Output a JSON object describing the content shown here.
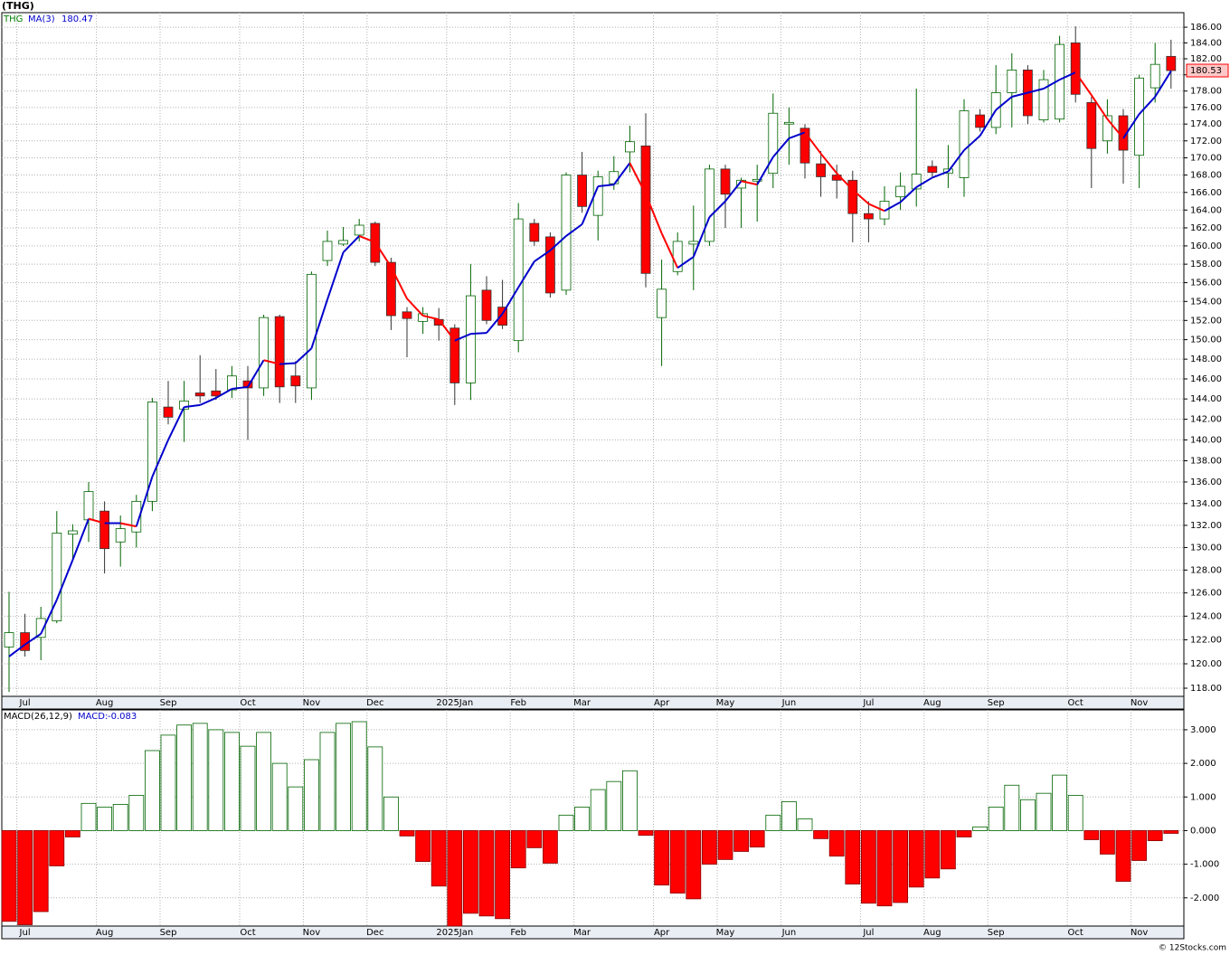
{
  "chart_data": [
    {
      "type": "candlestick",
      "title": "(THG)",
      "symbol": "THG",
      "symbol_color": "#008000",
      "categories": [
        null,
        "Jul",
        null,
        null,
        null,
        null,
        "Aug",
        null,
        null,
        null,
        "Sep",
        null,
        null,
        null,
        null,
        "Oct",
        null,
        null,
        null,
        "Nov",
        null,
        null,
        null,
        "Dec",
        null,
        null,
        null,
        null,
        "2025Jan",
        null,
        null,
        null,
        "Feb",
        null,
        null,
        null,
        "Mar",
        null,
        null,
        null,
        null,
        "Apr",
        null,
        null,
        null,
        "May",
        null,
        null,
        null,
        "Jun",
        null,
        null,
        null,
        null,
        "Jul",
        null,
        null,
        null,
        "Aug",
        null,
        null,
        null,
        "Sep",
        null,
        null,
        null,
        null,
        "Oct",
        null,
        null,
        null,
        "Nov",
        null,
        null
      ],
      "open": [
        121.4,
        122.6,
        122.2,
        123.6,
        131.2,
        132.5,
        133.3,
        130.5,
        131.4,
        134.2,
        143.2,
        143.0,
        144.6,
        144.8,
        144.9,
        145.8,
        145.1,
        152.4,
        146.3,
        145.1,
        158.4,
        160.2,
        161.2,
        162.5,
        158.2,
        152.9,
        151.9,
        152.1,
        151.2,
        145.6,
        155.2,
        153.4,
        149.9,
        162.5,
        161.0,
        155.2,
        168.0,
        163.4,
        167.0,
        170.7,
        171.4,
        152.3,
        157.2,
        160.2,
        160.5,
        168.7,
        166.5,
        167.3,
        168.2,
        174.0,
        173.5,
        169.3,
        168.0,
        167.4,
        163.6,
        163.0,
        165.5,
        166.4,
        169.0,
        168.2,
        167.7,
        175.1,
        173.6,
        177.8,
        180.6,
        174.5,
        174.6,
        184.0,
        176.6,
        172.0,
        175.0,
        170.3,
        178.4,
        182.3
      ],
      "high": [
        126.1,
        124.2,
        124.8,
        133.3,
        132.1,
        136.0,
        134.2,
        132.9,
        134.8,
        144.1,
        145.8,
        145.8,
        148.4,
        147.0,
        147.3,
        147.3,
        152.6,
        152.6,
        147.8,
        157.2,
        161.7,
        162.1,
        163.0,
        162.7,
        158.7,
        153.4,
        153.4,
        153.3,
        151.6,
        158.0,
        156.7,
        156.3,
        164.8,
        163.0,
        161.5,
        168.3,
        170.7,
        168.5,
        170.2,
        173.8,
        175.3,
        158.5,
        161.5,
        164.5,
        169.2,
        169.2,
        167.7,
        169.2,
        177.7,
        176.0,
        174.0,
        170.8,
        169.2,
        168.5,
        165.0,
        166.7,
        168.3,
        178.3,
        169.7,
        171.5,
        177.0,
        175.8,
        181.2,
        182.7,
        181.2,
        180.6,
        184.9,
        186.1,
        177.3,
        177.0,
        175.8,
        180.0,
        184.0,
        184.4
      ],
      "low": [
        117.7,
        120.6,
        120.3,
        123.4,
        128.9,
        130.5,
        127.7,
        128.3,
        130.0,
        133.3,
        141.5,
        139.8,
        143.6,
        143.9,
        144.1,
        140.0,
        144.3,
        143.6,
        143.6,
        143.9,
        157.8,
        160.0,
        160.5,
        157.8,
        151.0,
        148.2,
        150.6,
        149.9,
        143.4,
        143.9,
        151.6,
        151.1,
        148.7,
        160.0,
        154.4,
        154.7,
        163.7,
        160.6,
        166.3,
        168.3,
        155.5,
        147.3,
        156.8,
        155.2,
        160.0,
        162.0,
        162.0,
        162.7,
        166.5,
        169.2,
        167.6,
        165.5,
        165.3,
        160.4,
        160.4,
        162.3,
        164.0,
        164.4,
        167.8,
        166.5,
        165.5,
        173.1,
        172.8,
        173.6,
        174.0,
        174.2,
        174.2,
        176.6,
        166.5,
        170.5,
        167.0,
        166.5,
        176.6,
        178.3
      ],
      "close": [
        122.6,
        121.1,
        123.8,
        131.3,
        131.5,
        135.1,
        129.9,
        131.7,
        134.2,
        143.7,
        142.2,
        143.8,
        144.3,
        144.3,
        146.3,
        145.1,
        152.3,
        145.2,
        145.3,
        156.9,
        160.5,
        160.6,
        162.3,
        158.2,
        152.5,
        152.2,
        152.7,
        151.5,
        145.6,
        154.6,
        152.0,
        151.5,
        163.0,
        160.5,
        154.9,
        168.0,
        164.4,
        167.8,
        168.4,
        171.9,
        157.0,
        155.3,
        160.5,
        160.5,
        168.7,
        165.8,
        167.4,
        167.5,
        175.3,
        174.2,
        169.4,
        167.8,
        167.4,
        163.6,
        163.0,
        165.0,
        166.7,
        168.1,
        168.3,
        168.7,
        175.6,
        173.6,
        177.8,
        180.6,
        175.0,
        179.4,
        183.8,
        177.6,
        171.1,
        175.0,
        170.9,
        179.6,
        181.3,
        180.53
      ],
      "up_color": "#006400",
      "down_color": "#ff0000",
      "ma": {
        "name": "MA(3)",
        "up_color": "#0000cc",
        "down_color": "#ff0000",
        "values": [
          120.6,
          121.6,
          122.5,
          125.4,
          128.9,
          132.6,
          132.2,
          132.2,
          131.9,
          136.5,
          140.0,
          143.2,
          143.4,
          144.1,
          145.0,
          145.2,
          147.9,
          147.5,
          147.6,
          149.1,
          154.2,
          159.3,
          161.1,
          160.4,
          157.7,
          154.3,
          152.5,
          152.1,
          149.9,
          150.6,
          150.7,
          152.7,
          155.5,
          158.3,
          159.5,
          161.1,
          162.4,
          166.7,
          166.9,
          169.4,
          165.8,
          161.4,
          157.6,
          158.8,
          163.2,
          165.0,
          167.3,
          166.9,
          170.1,
          172.3,
          173.0,
          170.5,
          168.2,
          166.3,
          164.7,
          163.9,
          164.9,
          166.6,
          167.7,
          168.4,
          170.9,
          172.6,
          175.7,
          177.3,
          177.8,
          178.3,
          179.4,
          180.3,
          177.5,
          174.6,
          172.3,
          175.2,
          177.3,
          180.47
        ]
      },
      "ylog": true,
      "ylim": [
        117.34,
        187.87
      ],
      "grid": true,
      "yticks": [
        {
          "value": 186,
          "label": "186.00"
        },
        {
          "value": 184,
          "label": "184.00"
        },
        {
          "value": 182,
          "label": "182.00"
        },
        {
          "value": 180,
          "label": "180.00"
        },
        {
          "value": 178,
          "label": "178.00"
        },
        {
          "value": 176,
          "label": "176.00"
        },
        {
          "value": 174,
          "label": "174.00"
        },
        {
          "value": 172,
          "label": "172.00"
        },
        {
          "value": 170,
          "label": "170.00"
        },
        {
          "value": 168,
          "label": "168.00"
        },
        {
          "value": 166,
          "label": "166.00"
        },
        {
          "value": 164,
          "label": "164.00"
        },
        {
          "value": 162,
          "label": "162.00"
        },
        {
          "value": 160,
          "label": "160.00"
        },
        {
          "value": 158,
          "label": "158.00"
        },
        {
          "value": 156,
          "label": "156.00"
        },
        {
          "value": 154,
          "label": "154.00"
        },
        {
          "value": 152,
          "label": "152.00"
        },
        {
          "value": 150,
          "label": "150.00"
        },
        {
          "value": 148,
          "label": "148.00"
        },
        {
          "value": 146,
          "label": "146.00"
        },
        {
          "value": 144,
          "label": "144.00"
        },
        {
          "value": 142,
          "label": "142.00"
        },
        {
          "value": 140,
          "label": "140.00"
        },
        {
          "value": 138,
          "label": "138.00"
        },
        {
          "value": 136,
          "label": "136.00"
        },
        {
          "value": 134,
          "label": "134.00"
        },
        {
          "value": 132,
          "label": "132.00"
        },
        {
          "value": 130,
          "label": "130.00"
        },
        {
          "value": 128,
          "label": "128.00"
        },
        {
          "value": 126,
          "label": "126.00"
        },
        {
          "value": 124,
          "label": "124.00"
        },
        {
          "value": 122,
          "label": "122.00"
        },
        {
          "value": 120,
          "label": "120.00"
        },
        {
          "value": 118,
          "label": "118.00"
        }
      ]
    },
    {
      "type": "bar",
      "title": "MACD(26,12,9)",
      "series_label": "MACD:",
      "series_label_color": "#0000cc",
      "categories": [
        null,
        "Jul",
        null,
        null,
        null,
        null,
        "Aug",
        null,
        null,
        null,
        "Sep",
        null,
        null,
        null,
        null,
        "Oct",
        null,
        null,
        null,
        "Nov",
        null,
        null,
        null,
        "Dec",
        null,
        null,
        null,
        null,
        "2025Jan",
        null,
        null,
        null,
        "Feb",
        null,
        null,
        null,
        "Mar",
        null,
        null,
        null,
        null,
        "Apr",
        null,
        null,
        null,
        "May",
        null,
        null,
        null,
        "Jun",
        null,
        null,
        null,
        null,
        "Jul",
        null,
        null,
        null,
        "Aug",
        null,
        null,
        null,
        "Sep",
        null,
        null,
        null,
        null,
        "Oct",
        null,
        null,
        null,
        "Nov",
        null,
        null
      ],
      "values": [
        -2.7,
        -2.8,
        -2.41,
        -1.05,
        -0.19,
        0.81,
        0.7,
        0.78,
        1.05,
        2.38,
        2.84,
        3.14,
        3.19,
        3.0,
        2.92,
        2.51,
        2.92,
        2.0,
        1.3,
        2.11,
        2.92,
        3.19,
        3.24,
        2.49,
        1.0,
        -0.16,
        -0.92,
        -1.65,
        -2.84,
        -2.46,
        -2.54,
        -2.62,
        -1.11,
        -0.51,
        -0.97,
        0.46,
        0.7,
        1.22,
        1.46,
        1.78,
        -0.14,
        -1.62,
        -1.86,
        -2.03,
        -1.0,
        -0.86,
        -0.62,
        -0.49,
        0.46,
        0.86,
        0.35,
        -0.24,
        -0.76,
        -1.59,
        -2.16,
        -2.24,
        -2.14,
        -1.68,
        -1.41,
        -1.14,
        -0.19,
        0.11,
        0.7,
        1.35,
        0.92,
        1.11,
        1.65,
        1.05,
        -0.27,
        -0.7,
        -1.51,
        -0.89,
        -0.3,
        -0.083
      ],
      "up_color": "#006400",
      "down_color": "#ff0000",
      "ylim": [
        -2.84,
        3.59
      ],
      "grid": true,
      "yticks": [
        {
          "value": 3,
          "label": "3.000"
        },
        {
          "value": 2,
          "label": "2.000"
        },
        {
          "value": 1,
          "label": "1.000"
        },
        {
          "value": 0,
          "label": "0.000"
        },
        {
          "value": -1,
          "label": "-1.000"
        },
        {
          "value": -2,
          "label": "-2.000"
        }
      ]
    }
  ],
  "footer": "© 12Stocks.com"
}
